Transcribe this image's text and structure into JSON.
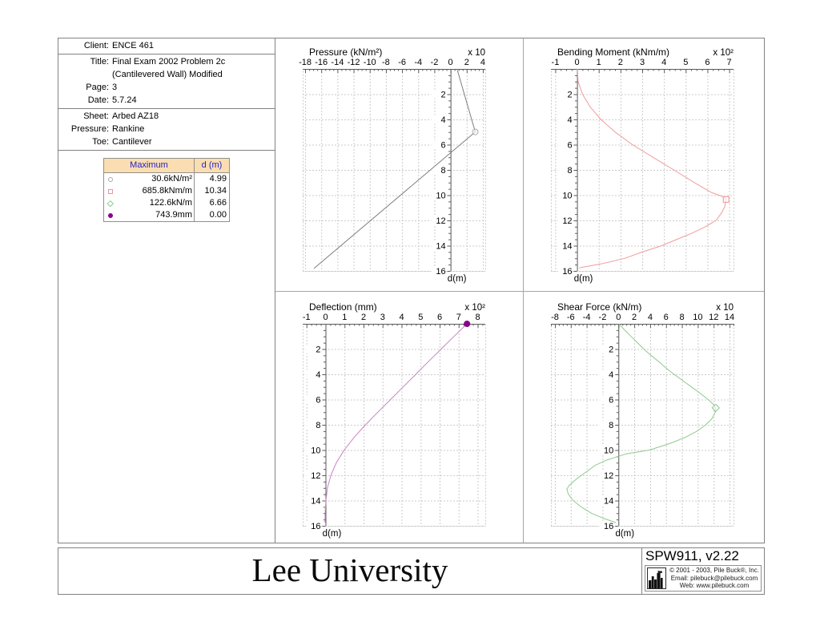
{
  "info": {
    "client": {
      "label": "Client:",
      "value": "ENCE 461"
    },
    "title": {
      "label": "Title:",
      "value": "Final Exam 2002 Problem 2c",
      "value2": "(Cantilevered Wall) Modified"
    },
    "page": {
      "label": "Page:",
      "value": "3"
    },
    "date": {
      "label": "Date:",
      "value": "5.7.24"
    },
    "sheet": {
      "label": "Sheet:",
      "value": "Arbed AZ18"
    },
    "pressure": {
      "label": "Pressure:",
      "value": "Rankine"
    },
    "toe": {
      "label": "Toe:",
      "value": "Cantilever"
    }
  },
  "max_table": {
    "headers": {
      "maximum": "Maximum",
      "d": "d (m)"
    },
    "styles": {
      "header_bg": "#FBDDB2",
      "header_text": "#2222CC",
      "border": "#909090"
    },
    "rows": [
      {
        "marker": "circle-open",
        "color": "#A8A8A8",
        "value": "30.6kN/m²",
        "d": "4.99"
      },
      {
        "marker": "square-open",
        "color": "#EE9494",
        "value": "685.8kNm/m",
        "d": "10.34"
      },
      {
        "marker": "diamond-open",
        "color": "#92C892",
        "value": "122.6kN/m",
        "d": "6.66"
      },
      {
        "marker": "circle-filled",
        "color": "#8B008B",
        "value": "743.9mm",
        "d": "0.00"
      }
    ]
  },
  "footer": {
    "organization": "Lee University",
    "app_version": "SPW911, v2.22",
    "copyright": "© 2001 - 2003, Pile Buck®, Inc.",
    "email": "Email: pilebuck@pilebuck.com",
    "web": "Web: www.pilebuck.com"
  },
  "chart_data": [
    {
      "type": "line",
      "title": "Pressure (kN/m²)",
      "multiplier": "x 10",
      "x_ticks": [
        -18,
        -16,
        -14,
        -12,
        -10,
        -8,
        -6,
        -4,
        -2,
        0,
        2,
        4
      ],
      "x_tick_step": 2,
      "xlim": [
        -18.3,
        4.3
      ],
      "d_ticks": [
        2,
        4,
        6,
        8,
        10,
        12,
        14,
        16
      ],
      "dlim": [
        0,
        16
      ],
      "d_axis_label": "d(m)",
      "grid": true,
      "line_color": "#7d7d7d",
      "points": [
        [
          0.85,
          0.1
        ],
        [
          3.06,
          4.99
        ],
        [
          -16.9,
          15.8
        ]
      ],
      "max_marker": {
        "shape": "circle-open",
        "color": "#A8A8A8",
        "x": 3.06,
        "d": 4.99
      }
    },
    {
      "type": "line",
      "title": "Bending Moment (kNm/m)",
      "multiplier": "x 10²",
      "x_ticks": [
        -1,
        0,
        1,
        2,
        3,
        4,
        5,
        6,
        7
      ],
      "x_tick_step": 1,
      "xlim": [
        -1.2,
        7.2
      ],
      "d_ticks": [
        2,
        4,
        6,
        8,
        10,
        12,
        14,
        16
      ],
      "dlim": [
        0,
        16
      ],
      "d_axis_label": "d(m)",
      "grid": true,
      "line_color": "#F09C9C",
      "points": [
        [
          0.02,
          0
        ],
        [
          0.05,
          1
        ],
        [
          0.25,
          2
        ],
        [
          0.6,
          3
        ],
        [
          1.1,
          4
        ],
        [
          1.75,
          5
        ],
        [
          2.55,
          6
        ],
        [
          3.5,
          7
        ],
        [
          4.45,
          8
        ],
        [
          5.4,
          9
        ],
        [
          6.2,
          9.8
        ],
        [
          6.7,
          10.1
        ],
        [
          6.86,
          10.34
        ],
        [
          6.8,
          10.9
        ],
        [
          6.65,
          11.4
        ],
        [
          6.4,
          12
        ],
        [
          5.9,
          12.5
        ],
        [
          5.3,
          13
        ],
        [
          4.6,
          13.5
        ],
        [
          3.9,
          14
        ],
        [
          3.0,
          14.5
        ],
        [
          2.2,
          15
        ],
        [
          1.1,
          15.45
        ],
        [
          0.1,
          15.75
        ]
      ],
      "max_marker": {
        "shape": "square-open",
        "color": "#EE9494",
        "x": 6.858,
        "d": 10.34
      }
    },
    {
      "type": "line",
      "title": "Deflection (mm)",
      "multiplier": "x 10²",
      "x_ticks": [
        -1,
        0,
        1,
        2,
        3,
        4,
        5,
        6,
        7,
        8
      ],
      "x_tick_step": 1,
      "xlim": [
        -1.2,
        8.4
      ],
      "d_ticks": [
        2,
        4,
        6,
        8,
        10,
        12,
        14,
        16
      ],
      "dlim": [
        0,
        16
      ],
      "d_axis_label": "d(m)",
      "grid": true,
      "line_color": "#C883C8",
      "points": [
        [
          7.439,
          0
        ],
        [
          6.75,
          1
        ],
        [
          6.08,
          2
        ],
        [
          5.4,
          3
        ],
        [
          4.75,
          4
        ],
        [
          4.08,
          5
        ],
        [
          3.42,
          6
        ],
        [
          2.75,
          7
        ],
        [
          2.1,
          8
        ],
        [
          1.5,
          9
        ],
        [
          0.98,
          10
        ],
        [
          0.57,
          11
        ],
        [
          0.28,
          12
        ],
        [
          0.1,
          13
        ],
        [
          0.02,
          14
        ],
        [
          -0.02,
          15
        ],
        [
          -0.03,
          15.75
        ]
      ],
      "max_marker": {
        "shape": "circle-filled",
        "color": "#8B008B",
        "x": 7.439,
        "d": 0.0
      }
    },
    {
      "type": "line",
      "title": "Shear Force (kN/m)",
      "multiplier": "x 10",
      "x_ticks": [
        -8,
        -6,
        -4,
        -2,
        0,
        2,
        4,
        6,
        8,
        10,
        12,
        14
      ],
      "x_tick_step": 2,
      "xlim": [
        -8.5,
        14.5
      ],
      "d_ticks": [
        2,
        4,
        6,
        8,
        10,
        12,
        14,
        16
      ],
      "dlim": [
        0,
        16
      ],
      "d_axis_label": "d(m)",
      "grid": true,
      "line_color": "#8FC98F",
      "points": [
        [
          0.05,
          0
        ],
        [
          0.8,
          0.5
        ],
        [
          1.6,
          1
        ],
        [
          2.4,
          1.5
        ],
        [
          3.2,
          2
        ],
        [
          4.1,
          2.5
        ],
        [
          5.1,
          3
        ],
        [
          6.0,
          3.5
        ],
        [
          7.0,
          4
        ],
        [
          8.1,
          4.5
        ],
        [
          9.2,
          5
        ],
        [
          10.3,
          5.5
        ],
        [
          11.3,
          6
        ],
        [
          12.0,
          6.4
        ],
        [
          12.26,
          6.66
        ],
        [
          12.2,
          7
        ],
        [
          11.8,
          7.5
        ],
        [
          11.0,
          8
        ],
        [
          9.9,
          8.5
        ],
        [
          8.4,
          9
        ],
        [
          6.4,
          9.5
        ],
        [
          3.9,
          10
        ],
        [
          1.0,
          10.3
        ],
        [
          -1.5,
          10.8
        ],
        [
          -2.9,
          11.2
        ],
        [
          -4.2,
          11.8
        ],
        [
          -5.3,
          12.3
        ],
        [
          -6.2,
          12.8
        ],
        [
          -6.5,
          13.1
        ],
        [
          -6.3,
          13.5
        ],
        [
          -5.7,
          14
        ],
        [
          -4.7,
          14.5
        ],
        [
          -3.4,
          15
        ],
        [
          -1.9,
          15.4
        ],
        [
          -0.3,
          15.75
        ]
      ],
      "max_marker": {
        "shape": "diamond-open",
        "color": "#92C892",
        "x": 12.26,
        "d": 6.66
      }
    }
  ]
}
